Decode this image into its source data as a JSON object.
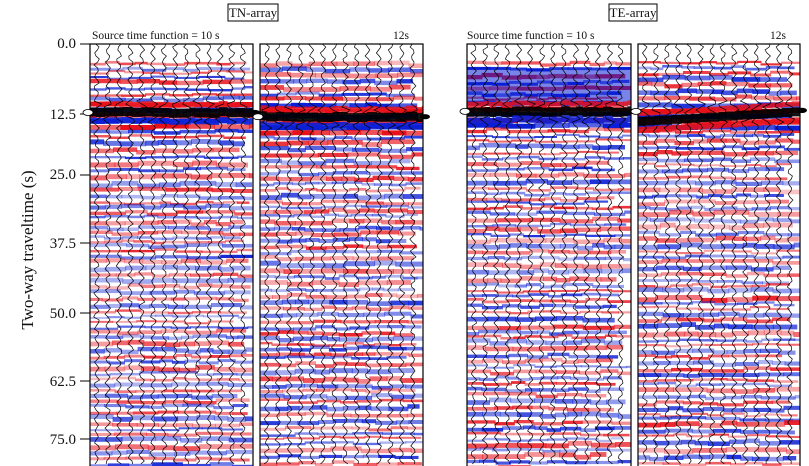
{
  "figure": {
    "ylabel": "Two-way traveltime (s)",
    "yticks": [
      "0.0",
      "12.5",
      "25.0",
      "37.5",
      "50.0",
      "62.5",
      "75.0"
    ],
    "groups": [
      {
        "title": "TN-array"
      },
      {
        "title": "TE-array"
      }
    ],
    "panels": [
      {
        "label": "Source time function = 10 s"
      },
      {
        "label": "12s"
      },
      {
        "label": "Source time function = 10 s"
      },
      {
        "label": "12s"
      }
    ],
    "colors": {
      "positive": "#e8101a",
      "negative": "#0a1fd6",
      "trace": "#000000",
      "frame": "#000000"
    }
  },
  "chart_data": {
    "type": "heatmap",
    "title": "",
    "xlabel": "",
    "ylabel": "Two-way traveltime (s)",
    "y_ticks": [
      0.0,
      12.5,
      25.0,
      37.5,
      50.0,
      62.5,
      75.0
    ],
    "ylim": [
      0.0,
      78.5
    ],
    "y_inverted": true,
    "groups": [
      "TN-array",
      "TE-array"
    ],
    "panels": [
      {
        "group": "TN-array",
        "label": "Source time function = 10 s",
        "traces": 14,
        "strong_reflector_s": 13.0
      },
      {
        "group": "TN-array",
        "label": "12s",
        "traces": 14,
        "strong_reflector_s": 13.8
      },
      {
        "group": "TE-array",
        "label": "Source time function = 10 s",
        "traces": 14,
        "strong_reflector_s": 12.8
      },
      {
        "group": "TE-array",
        "label": "12s",
        "traces": 14,
        "strong_reflector_s": 12.8
      }
    ]
  }
}
